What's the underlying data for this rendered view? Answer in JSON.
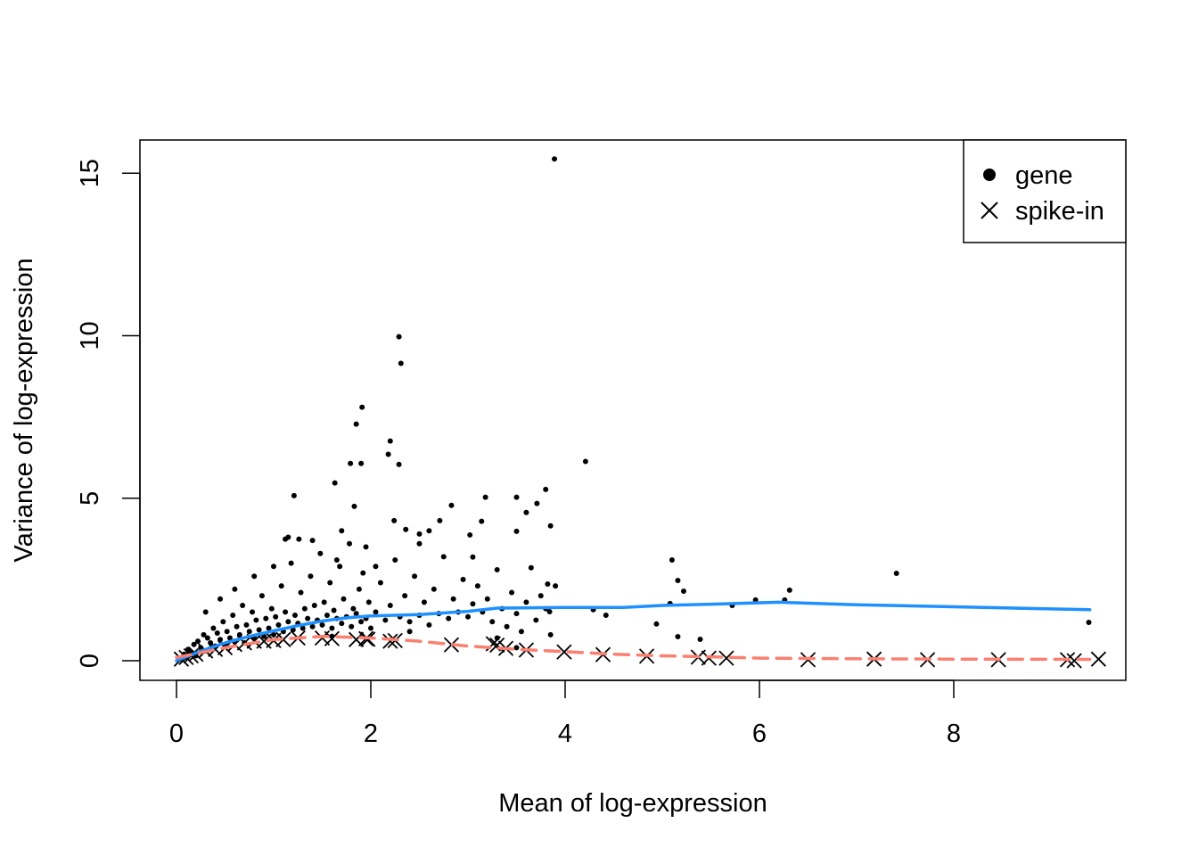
{
  "chart_data": {
    "type": "scatter",
    "title": "",
    "xlabel": "Mean of log-expression",
    "ylabel": "Variance of log-expression",
    "xlim": [
      -0.4,
      9.75
    ],
    "ylim": [
      -0.6,
      16.0
    ],
    "xticks": [
      0,
      2,
      4,
      6,
      8
    ],
    "yticks": [
      0,
      5,
      10,
      15
    ],
    "grid": false,
    "legend": {
      "placement": "top-right",
      "entries": [
        {
          "label": "gene",
          "marker": "filled-circle"
        },
        {
          "label": "spike-in",
          "marker": "cross"
        }
      ]
    },
    "series": [
      {
        "name": "gene",
        "marker": "filled-circle",
        "color": "#000000",
        "points": [
          [
            3.89,
            15.44
          ],
          [
            2.29,
            9.97
          ],
          [
            2.31,
            9.15
          ],
          [
            1.91,
            7.8
          ],
          [
            1.85,
            7.28
          ],
          [
            2.2,
            6.76
          ],
          [
            2.18,
            6.35
          ],
          [
            1.79,
            6.07
          ],
          [
            1.9,
            6.07
          ],
          [
            2.29,
            6.04
          ],
          [
            4.21,
            6.13
          ],
          [
            1.21,
            5.08
          ],
          [
            1.63,
            5.47
          ],
          [
            3.18,
            5.03
          ],
          [
            3.5,
            5.03
          ],
          [
            3.8,
            5.27
          ],
          [
            3.71,
            4.84
          ],
          [
            2.83,
            4.78
          ],
          [
            1.83,
            4.75
          ],
          [
            5.1,
            3.1
          ],
          [
            7.41,
            2.69
          ],
          [
            6.31,
            2.17
          ],
          [
            9.39,
            1.18
          ],
          [
            5.16,
            2.47
          ],
          [
            5.22,
            2.14
          ],
          [
            5.08,
            1.76
          ],
          [
            4.94,
            1.13
          ],
          [
            5.16,
            0.74
          ],
          [
            5.39,
            0.66
          ],
          [
            5.72,
            1.7
          ],
          [
            5.96,
            1.87
          ],
          [
            6.26,
            1.87
          ],
          [
            4.29,
            1.57
          ],
          [
            4.42,
            1.4
          ],
          [
            3.84,
            1.51
          ],
          [
            3.6,
            4.56
          ],
          [
            3.5,
            3.98
          ],
          [
            3.85,
            4.15
          ],
          [
            2.71,
            4.31
          ],
          [
            2.24,
            4.31
          ],
          [
            2.36,
            4.04
          ],
          [
            3.02,
            3.87
          ],
          [
            3.14,
            4.29
          ],
          [
            1.12,
            3.74
          ],
          [
            1.26,
            3.74
          ],
          [
            3.05,
            3.19
          ],
          [
            2.5,
            3.6
          ],
          [
            3.65,
            2.86
          ],
          [
            3.82,
            2.36
          ],
          [
            0.05,
            0.05
          ],
          [
            0.08,
            0.2
          ],
          [
            0.1,
            0.1
          ],
          [
            0.12,
            0.35
          ],
          [
            0.15,
            0.25
          ],
          [
            0.18,
            0.5
          ],
          [
            0.2,
            0.15
          ],
          [
            0.22,
            0.6
          ],
          [
            0.25,
            0.4
          ],
          [
            0.28,
            0.8
          ],
          [
            0.3,
            0.3
          ],
          [
            0.32,
            0.7
          ],
          [
            0.35,
            0.55
          ],
          [
            0.38,
            1.0
          ],
          [
            0.4,
            0.45
          ],
          [
            0.42,
            0.85
          ],
          [
            0.45,
            0.65
          ],
          [
            0.48,
            1.2
          ],
          [
            0.5,
            0.5
          ],
          [
            0.52,
            0.9
          ],
          [
            0.55,
            0.7
          ],
          [
            0.58,
            1.4
          ],
          [
            0.6,
            0.6
          ],
          [
            0.62,
            1.05
          ],
          [
            0.65,
            0.8
          ],
          [
            0.68,
            1.7
          ],
          [
            0.7,
            0.55
          ],
          [
            0.72,
            1.1
          ],
          [
            0.75,
            0.9
          ],
          [
            0.78,
            1.5
          ],
          [
            0.8,
            0.7
          ],
          [
            0.82,
            1.25
          ],
          [
            0.85,
            0.95
          ],
          [
            0.88,
            2.0
          ],
          [
            0.9,
            0.75
          ],
          [
            0.92,
            1.3
          ],
          [
            0.95,
            1.0
          ],
          [
            0.98,
            1.6
          ],
          [
            1.0,
            0.8
          ],
          [
            1.02,
            1.35
          ],
          [
            1.05,
            1.1
          ],
          [
            1.08,
            2.3
          ],
          [
            1.1,
            0.9
          ],
          [
            1.12,
            1.5
          ],
          [
            1.15,
            1.2
          ],
          [
            1.18,
            3.0
          ],
          [
            1.2,
            0.95
          ],
          [
            1.22,
            1.4
          ],
          [
            1.25,
            1.15
          ],
          [
            1.28,
            2.1
          ],
          [
            1.3,
            1.0
          ],
          [
            1.32,
            1.6
          ],
          [
            1.35,
            1.3
          ],
          [
            1.38,
            2.6
          ],
          [
            1.4,
            1.05
          ],
          [
            1.42,
            1.7
          ],
          [
            1.45,
            1.25
          ],
          [
            1.48,
            3.3
          ],
          [
            1.5,
            1.1
          ],
          [
            1.52,
            1.8
          ],
          [
            1.55,
            1.4
          ],
          [
            1.58,
            2.4
          ],
          [
            1.6,
            1.0
          ],
          [
            1.62,
            1.55
          ],
          [
            1.65,
            1.3
          ],
          [
            1.68,
            2.9
          ],
          [
            1.7,
            1.15
          ],
          [
            1.72,
            1.9
          ],
          [
            1.75,
            1.35
          ],
          [
            1.78,
            3.6
          ],
          [
            1.8,
            1.05
          ],
          [
            1.82,
            1.6
          ],
          [
            1.85,
            1.45
          ],
          [
            1.88,
            2.2
          ],
          [
            1.9,
            1.2
          ],
          [
            1.92,
            2.7
          ],
          [
            1.95,
            1.3
          ],
          [
            1.98,
            1.8
          ],
          [
            2.0,
            1.0
          ],
          [
            2.05,
            1.5
          ],
          [
            2.1,
            2.4
          ],
          [
            2.15,
            1.25
          ],
          [
            2.2,
            1.7
          ],
          [
            2.25,
            3.1
          ],
          [
            2.3,
            1.35
          ],
          [
            2.35,
            2.0
          ],
          [
            2.4,
            1.2
          ],
          [
            2.45,
            2.6
          ],
          [
            2.5,
            1.4
          ],
          [
            2.55,
            1.8
          ],
          [
            2.6,
            1.1
          ],
          [
            2.65,
            2.2
          ],
          [
            2.7,
            1.45
          ],
          [
            2.75,
            3.2
          ],
          [
            2.8,
            1.3
          ],
          [
            2.85,
            1.9
          ],
          [
            2.9,
            1.5
          ],
          [
            2.95,
            2.5
          ],
          [
            3.0,
            1.35
          ],
          [
            3.05,
            1.75
          ],
          [
            3.1,
            2.3
          ],
          [
            3.15,
            1.5
          ],
          [
            3.2,
            1.9
          ],
          [
            3.25,
            1.2
          ],
          [
            3.3,
            2.8
          ],
          [
            3.35,
            1.6
          ],
          [
            3.4,
            1.05
          ],
          [
            3.45,
            2.1
          ],
          [
            3.5,
            1.45
          ],
          [
            3.55,
            0.9
          ],
          [
            3.6,
            1.8
          ],
          [
            3.7,
            1.25
          ],
          [
            3.75,
            2.0
          ],
          [
            3.8,
            1.6
          ],
          [
            3.85,
            0.8
          ],
          [
            3.9,
            2.3
          ],
          [
            3.5,
            0.4
          ],
          [
            3.3,
            0.7
          ],
          [
            2.4,
            0.9
          ],
          [
            1.6,
            0.75
          ],
          [
            0.3,
            1.5
          ],
          [
            0.45,
            1.9
          ],
          [
            0.6,
            2.2
          ],
          [
            0.8,
            2.6
          ],
          [
            1.0,
            2.9
          ],
          [
            1.15,
            3.8
          ],
          [
            1.4,
            3.7
          ],
          [
            1.65,
            3.1
          ],
          [
            1.95,
            3.5
          ],
          [
            2.05,
            2.9
          ],
          [
            1.7,
            4.0
          ],
          [
            2.5,
            3.9
          ],
          [
            2.6,
            4.0
          ]
        ]
      },
      {
        "name": "spike-in",
        "marker": "cross",
        "color": "#000000",
        "points": [
          [
            0.05,
            0.05
          ],
          [
            0.1,
            0.1
          ],
          [
            0.15,
            0.15
          ],
          [
            0.2,
            0.2
          ],
          [
            0.3,
            0.3
          ],
          [
            0.4,
            0.35
          ],
          [
            0.5,
            0.4
          ],
          [
            0.6,
            0.5
          ],
          [
            0.7,
            0.55
          ],
          [
            0.8,
            0.6
          ],
          [
            0.9,
            0.6
          ],
          [
            1.0,
            0.62
          ],
          [
            1.1,
            0.65
          ],
          [
            1.25,
            0.7
          ],
          [
            1.5,
            0.7
          ],
          [
            1.6,
            0.68
          ],
          [
            1.85,
            0.65
          ],
          [
            1.95,
            0.68
          ],
          [
            1.97,
            0.66
          ],
          [
            2.2,
            0.6
          ],
          [
            2.25,
            0.62
          ],
          [
            2.83,
            0.49
          ],
          [
            3.26,
            0.52
          ],
          [
            3.3,
            0.48
          ],
          [
            3.39,
            0.38
          ],
          [
            3.6,
            0.33
          ],
          [
            3.99,
            0.27
          ],
          [
            4.39,
            0.19
          ],
          [
            4.84,
            0.14
          ],
          [
            5.37,
            0.11
          ],
          [
            5.48,
            0.08
          ],
          [
            5.66,
            0.08
          ],
          [
            6.5,
            0.03
          ],
          [
            7.18,
            0.05
          ],
          [
            7.73,
            0.03
          ],
          [
            8.46,
            0.03
          ],
          [
            9.17,
            0.03
          ],
          [
            9.24,
            0.0
          ],
          [
            9.49,
            0.05
          ]
        ]
      },
      {
        "type": "line",
        "color": "#1E90FF",
        "style": "solid",
        "points": [
          [
            0,
            0
          ],
          [
            0.25,
            0.3
          ],
          [
            0.5,
            0.55
          ],
          [
            0.75,
            0.75
          ],
          [
            1,
            0.92
          ],
          [
            1.25,
            1.08
          ],
          [
            1.5,
            1.22
          ],
          [
            1.75,
            1.32
          ],
          [
            2,
            1.38
          ],
          [
            2.5,
            1.42
          ],
          [
            3,
            1.52
          ],
          [
            3.3,
            1.62
          ],
          [
            4,
            1.64
          ],
          [
            4.6,
            1.64
          ],
          [
            5,
            1.7
          ],
          [
            5.5,
            1.74
          ],
          [
            6.2,
            1.8
          ],
          [
            7,
            1.72
          ],
          [
            8,
            1.66
          ],
          [
            9.4,
            1.57
          ]
        ]
      },
      {
        "type": "line",
        "color": "#FA8072",
        "style": "dashed",
        "points": [
          [
            0,
            0.1
          ],
          [
            0.5,
            0.4
          ],
          [
            1,
            0.65
          ],
          [
            1.5,
            0.75
          ],
          [
            2,
            0.7
          ],
          [
            2.5,
            0.6
          ],
          [
            3,
            0.45
          ],
          [
            3.5,
            0.35
          ],
          [
            4,
            0.28
          ],
          [
            4.5,
            0.2
          ],
          [
            5,
            0.15
          ],
          [
            5.5,
            0.12
          ],
          [
            6,
            0.08
          ],
          [
            7,
            0.06
          ],
          [
            8,
            0.05
          ],
          [
            9.4,
            0.04
          ]
        ]
      }
    ]
  }
}
